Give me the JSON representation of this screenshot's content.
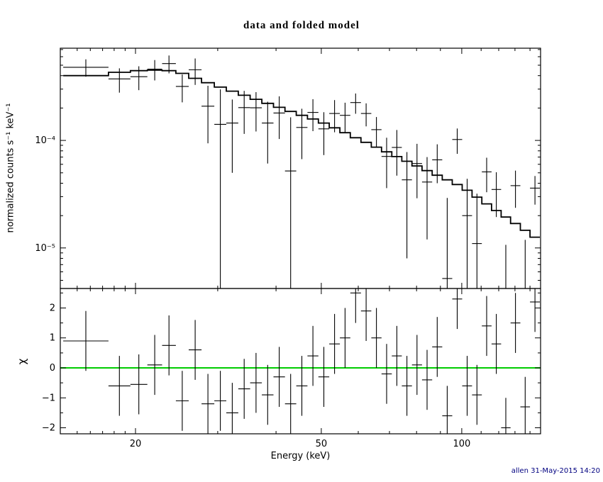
{
  "title": "data and folded model",
  "footer": "allen 31-May-2015 14:20",
  "x_axis": {
    "label": "Energy (keV)",
    "scale": "log",
    "lim": [
      13.8,
      147.5
    ],
    "major_ticks": [
      {
        "value": 20,
        "label": "20"
      },
      {
        "value": 50,
        "label": "50"
      },
      {
        "value": 100,
        "label": "100"
      }
    ],
    "minor_ticks": [
      15,
      16,
      17,
      18,
      19,
      30,
      40,
      60,
      70,
      80,
      90,
      110,
      120,
      130,
      140
    ]
  },
  "y_axis_top": {
    "label": "normalized counts s⁻¹ keV⁻¹",
    "scale": "log",
    "lim": [
      4.2e-06,
      0.00072
    ],
    "major_ticks": [
      {
        "value": 1e-05,
        "label": "10⁻⁵"
      },
      {
        "value": 0.0001,
        "label": "10⁻⁴"
      }
    ],
    "minor_ticks": [
      5e-06,
      6e-06,
      7e-06,
      8e-06,
      9e-06,
      2e-05,
      3e-05,
      4e-05,
      5e-05,
      6e-05,
      7e-05,
      8e-05,
      9e-05,
      0.0002,
      0.0003,
      0.0004,
      0.0005,
      0.0006,
      0.0007
    ]
  },
  "y_axis_bottom": {
    "label": "χ",
    "scale": "linear",
    "lim": [
      -2.2,
      2.65
    ],
    "major_ticks": [
      {
        "value": -2,
        "label": "−2"
      },
      {
        "value": -1,
        "label": "−1"
      },
      {
        "value": 0,
        "label": "0"
      },
      {
        "value": 1,
        "label": "1"
      },
      {
        "value": 2,
        "label": "2"
      }
    ],
    "minor_ticks": [
      -1.5,
      -0.5,
      0.5,
      1.5,
      2.5
    ]
  },
  "colors": {
    "axis": "#000000",
    "model_line": "#000000",
    "data_points": "#000000",
    "zero_line": "#00cc00",
    "footer_text": "#000080"
  },
  "chart_data": {
    "type": "line",
    "title": "data and folded model",
    "xlabel": "Energy (keV)",
    "x_scale": "log",
    "x_lim": [
      13.8,
      147.5
    ],
    "x_bin_edges_keV": [
      14.0,
      17.5,
      19.5,
      21.2,
      22.8,
      24.4,
      26.0,
      27.7,
      29.5,
      31.3,
      33.2,
      35.2,
      37.3,
      39.5,
      41.8,
      44.2,
      46.7,
      49.3,
      52.0,
      54.8,
      57.7,
      60.8,
      64.0,
      67.3,
      70.8,
      74.4,
      78.2,
      82.2,
      86.4,
      90.8,
      95.4,
      100.2,
      105.2,
      110.4,
      115.8,
      121.4,
      127.2,
      133.5,
      140.0,
      147.0
    ],
    "panels": [
      {
        "name": "spectrum",
        "ylabel": "normalized counts s⁻¹ keV⁻¹",
        "yscale": "log",
        "ylim": [
          4.2e-06,
          0.00072
        ],
        "model_counts": [
          0.0004,
          0.00043,
          0.000445,
          0.00045,
          0.000445,
          0.00042,
          0.000378,
          0.000344,
          0.000313,
          0.000287,
          0.000263,
          0.000241,
          0.000221,
          0.000203,
          0.000186,
          0.000171,
          0.000158,
          0.000145,
          0.000131,
          0.000118,
          0.000106,
          9.6e-05,
          8.66e-05,
          7.83e-05,
          7.07e-05,
          6.4e-05,
          5.79e-05,
          5.24e-05,
          4.75e-05,
          4.3e-05,
          3.89e-05,
          3.44e-05,
          2.97e-05,
          2.57e-05,
          2.23e-05,
          1.94e-05,
          1.69e-05,
          1.46e-05,
          1.26e-05
        ],
        "data_counts": [
          0.000479,
          0.000373,
          0.000391,
          0.00046,
          0.000518,
          0.000318,
          0.000453,
          0.000208,
          0.000141,
          0.000145,
          0.000202,
          0.000201,
          0.000145,
          0.00018,
          5.2e-05,
          0.000132,
          0.000182,
          0.000128,
          0.000178,
          0.000171,
          0.000225,
          0.000178,
          0.000126,
          7.1e-05,
          8.6e-05,
          4.3e-05,
          6.1e-05,
          4.1e-05,
          6.6e-05,
          5.2e-06,
          0.000102,
          2e-05,
          1.1e-05,
          5.1e-05,
          3.5e-05,
          2e-06,
          3.8e-05,
          3e-06,
          3.6e-05
        ],
        "data_err": [
          8.8e-05,
          9.5e-05,
          9.8e-05,
          9.9e-05,
          9.8e-05,
          9.2e-05,
          0.000125,
          0.000114,
          0.000157,
          9.5e-05,
          8.7e-05,
          8e-05,
          8.4e-05,
          7.7e-05,
          0.000112,
          6.5e-05,
          6e-05,
          5.5e-05,
          5.9e-05,
          5.3e-05,
          4.8e-05,
          4.3e-05,
          3.9e-05,
          3.5e-05,
          3.9e-05,
          3.5e-05,
          3.2e-05,
          2.9e-05,
          2.6e-05,
          2.4e-05,
          2.7e-05,
          2.4e-05,
          2.1e-05,
          1.8e-05,
          1.56e-05,
          8.7e-06,
          1.44e-05,
          8.9e-06,
          1.07e-05
        ]
      },
      {
        "name": "residuals",
        "ylabel": "χ",
        "yscale": "linear",
        "ylim": [
          -2.2,
          2.65
        ],
        "chi": [
          0.9,
          -0.6,
          -0.55,
          0.1,
          0.75,
          -1.1,
          0.6,
          -1.2,
          -1.1,
          -1.5,
          -0.7,
          -0.5,
          -0.9,
          -0.3,
          -1.2,
          -0.6,
          0.4,
          -0.3,
          0.8,
          1.0,
          2.5,
          1.9,
          1.0,
          -0.2,
          0.4,
          -0.6,
          0.1,
          -0.4,
          0.7,
          -1.6,
          2.3,
          -0.6,
          -0.9,
          1.4,
          0.8,
          -2.0,
          1.5,
          -1.3,
          2.2
        ],
        "chi_err": 1,
        "zero_line_y": 0
      }
    ]
  }
}
